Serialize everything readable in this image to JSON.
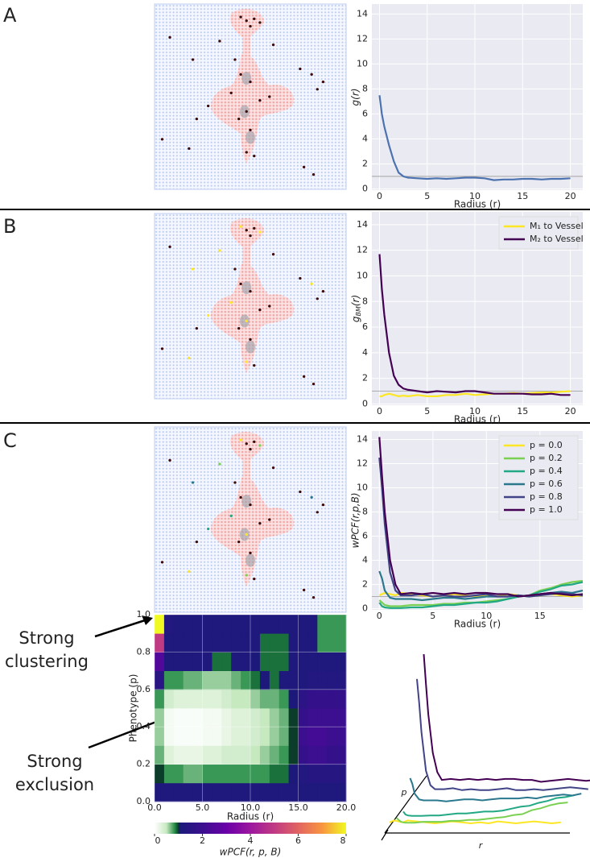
{
  "panel_labels": [
    "A",
    "B",
    "C"
  ],
  "chart_data": [
    {
      "type": "line",
      "xlabel": "Radius (r)",
      "ylabel": "g(r)",
      "color": "#4c72b0",
      "x": [
        0,
        0.25,
        0.5,
        1,
        1.5,
        2,
        2.5,
        3,
        4,
        5,
        6,
        7,
        8,
        9,
        10,
        11,
        12,
        13,
        14,
        15,
        16,
        17,
        18,
        19,
        20
      ],
      "values": [
        7.5,
        6,
        5,
        3.5,
        2.2,
        1.3,
        1.0,
        0.9,
        0.85,
        0.8,
        0.85,
        0.8,
        0.85,
        0.9,
        0.9,
        0.85,
        0.7,
        0.75,
        0.75,
        0.8,
        0.8,
        0.75,
        0.8,
        0.8,
        0.85
      ],
      "xlim": [
        -0.8,
        21.3
      ],
      "ylim": [
        -0.1,
        14.8
      ],
      "xticks": [
        0,
        5,
        10,
        15,
        20
      ],
      "yticks": [
        0,
        2,
        4,
        6,
        8,
        10,
        12,
        14
      ],
      "grid": true,
      "reference_line": 1
    },
    {
      "type": "line",
      "xlabel": "Radius (r)",
      "ylabel_parts": [
        "g",
        "BM",
        "(r)"
      ],
      "legend": "upper right",
      "x": [
        0,
        0.25,
        0.5,
        1,
        1.5,
        2,
        2.5,
        3,
        4,
        5,
        6,
        7,
        8,
        9,
        10,
        11,
        12,
        13,
        14,
        15,
        16,
        17,
        18,
        19,
        20
      ],
      "series": [
        {
          "name": "M₁ to Vessel",
          "color": "#fde725",
          "values": [
            0.6,
            0.6,
            0.7,
            0.8,
            0.7,
            0.6,
            0.65,
            0.6,
            0.7,
            0.6,
            0.6,
            0.7,
            0.7,
            0.8,
            0.7,
            0.75,
            0.8,
            0.8,
            0.85,
            0.8,
            0.85,
            0.9,
            0.9,
            0.95,
            1.0
          ]
        },
        {
          "name": "M₂ to Vessel",
          "color": "#440154",
          "values": [
            11.7,
            9,
            7,
            4,
            2.2,
            1.5,
            1.2,
            1.1,
            1.0,
            0.9,
            1.0,
            0.95,
            0.9,
            1.0,
            1.0,
            0.9,
            0.8,
            0.8,
            0.8,
            0.8,
            0.75,
            0.75,
            0.8,
            0.7,
            0.7
          ]
        }
      ],
      "xlim": [
        -0.8,
        21.3
      ],
      "ylim": [
        -0.1,
        15.0
      ],
      "xticks": [
        0,
        5,
        10,
        15,
        20
      ],
      "yticks": [
        0,
        2,
        4,
        6,
        8,
        10,
        12,
        14
      ],
      "grid": true,
      "reference_line": 1
    },
    {
      "type": "line",
      "xlabel": "Radius (r)",
      "ylabel": "wPCF(r,p,B)",
      "legend": "upper right",
      "x": [
        0,
        0.25,
        0.5,
        1,
        1.5,
        2,
        3,
        4,
        5,
        6,
        7,
        8,
        9,
        10,
        11,
        12,
        13,
        14,
        15,
        16,
        17,
        18,
        19
      ],
      "series": [
        {
          "name": "p = 0.0",
          "color": "#fde725",
          "values": [
            1.1,
            1.2,
            1.3,
            1.2,
            1.1,
            1.3,
            1.2,
            1.1,
            1.0,
            1.1,
            1.2,
            1.1,
            1.0,
            1.1,
            1.0,
            1.2,
            1.1,
            1.0,
            1.1,
            1.2,
            1.1,
            1.0,
            1.1
          ]
        },
        {
          "name": "p = 0.2",
          "color": "#7ad151",
          "values": [
            0.7,
            0.5,
            0.3,
            0.2,
            0.2,
            0.2,
            0.3,
            0.3,
            0.3,
            0.4,
            0.4,
            0.5,
            0.5,
            0.6,
            0.7,
            0.8,
            1.0,
            1.1,
            1.5,
            1.7,
            2.0,
            2.2,
            2.3
          ]
        },
        {
          "name": "p = 0.4",
          "color": "#22a884",
          "values": [
            0.5,
            0.2,
            0.1,
            0.05,
            0.05,
            0.05,
            0.1,
            0.1,
            0.2,
            0.3,
            0.3,
            0.4,
            0.5,
            0.5,
            0.6,
            0.8,
            1.0,
            1.1,
            1.4,
            1.6,
            1.9,
            2.0,
            2.2
          ]
        },
        {
          "name": "p = 0.6",
          "color": "#2a788e",
          "values": [
            3.1,
            2.5,
            1.5,
            0.9,
            0.8,
            0.8,
            0.8,
            0.7,
            0.8,
            0.9,
            0.9,
            0.8,
            0.9,
            1.0,
            1.0,
            1.0,
            1.1,
            1.0,
            1.2,
            1.3,
            1.4,
            1.3,
            1.5
          ]
        },
        {
          "name": "p = 0.8",
          "color": "#414487",
          "values": [
            12.5,
            10,
            7,
            3,
            1.5,
            1.1,
            1.1,
            1.2,
            1.0,
            1.1,
            1.0,
            1.0,
            1.1,
            1.2,
            1.0,
            1.0,
            1.1,
            1.0,
            1.1,
            1.2,
            1.3,
            1.2,
            1.1
          ]
        },
        {
          "name": "p = 1.0",
          "color": "#440154",
          "values": [
            14.2,
            11,
            8,
            4,
            2,
            1.2,
            1.3,
            1.2,
            1.3,
            1.2,
            1.3,
            1.2,
            1.3,
            1.3,
            1.2,
            1.2,
            1.0,
            1.1,
            1.2,
            1.3,
            1.2,
            1.1,
            1.2
          ]
        }
      ],
      "xlim": [
        -0.7,
        19.0
      ],
      "ylim": [
        -0.1,
        14.7
      ],
      "xticks": [
        0,
        5,
        10,
        15
      ],
      "yticks": [
        0,
        2,
        4,
        6,
        8,
        10,
        12,
        14
      ],
      "grid": true,
      "reference_line": 1
    },
    {
      "type": "heatmap",
      "xlabel": "Radius (r)",
      "ylabel": "Phenotype (p)",
      "x_bins": [
        0,
        1,
        2,
        3,
        4,
        5,
        6,
        7,
        8,
        9,
        10,
        11,
        12,
        13,
        14,
        15,
        16,
        17,
        18,
        19,
        20
      ],
      "y_bins": [
        0,
        0.1,
        0.2,
        0.3,
        0.4,
        0.5,
        0.6,
        0.7,
        0.8,
        0.9,
        1.0
      ],
      "values": [
        [
          1.2,
          1.2,
          1.2,
          1.2,
          1.2,
          1.2,
          1.2,
          1.2,
          1.2,
          1.2,
          1.2,
          1.2,
          1.2,
          1.2,
          1.2,
          1.2,
          1.2,
          1.2,
          1.2,
          1.2
        ],
        [
          1,
          0.8,
          0.8,
          0.7,
          0.7,
          0.8,
          0.8,
          0.8,
          0.8,
          0.8,
          0.8,
          0.8,
          0.9,
          0.9,
          1.1,
          1.3,
          1.4,
          1.4,
          1.4,
          1.4
        ],
        [
          0.7,
          0.3,
          0.2,
          0.2,
          0.2,
          0.3,
          0.3,
          0.4,
          0.4,
          0.4,
          0.5,
          0.6,
          0.7,
          0.8,
          1.0,
          1.8,
          2,
          2,
          1.8,
          1.8
        ],
        [
          0.6,
          0.1,
          0.05,
          0.05,
          0.05,
          0.1,
          0.1,
          0.2,
          0.3,
          0.3,
          0.4,
          0.5,
          0.6,
          0.7,
          1.0,
          2,
          2.2,
          2.2,
          2,
          2
        ],
        [
          0.6,
          0.1,
          0.05,
          0.05,
          0.05,
          0.1,
          0.1,
          0.2,
          0.3,
          0.3,
          0.4,
          0.5,
          0.6,
          0.7,
          1.0,
          1.8,
          2,
          2,
          2,
          2
        ],
        [
          0.8,
          0.4,
          0.3,
          0.3,
          0.3,
          0.3,
          0.3,
          0.4,
          0.5,
          0.5,
          0.6,
          0.7,
          0.7,
          0.8,
          1.1,
          1.6,
          1.8,
          1.8,
          1.8,
          1.8
        ],
        [
          1.5,
          0.8,
          0.8,
          0.7,
          0.7,
          0.6,
          0.6,
          0.6,
          0.7,
          0.8,
          0.9,
          1.1,
          0.9,
          1.2,
          1.2,
          1.2,
          1.3,
          1.3,
          1.3,
          1.3
        ],
        [
          2.5,
          1.2,
          1.2,
          1.2,
          1.2,
          1.2,
          0.9,
          0.9,
          1.2,
          1.2,
          1.1,
          0.9,
          0.9,
          0.9,
          1.2,
          1.2,
          1.2,
          1.2,
          1.2,
          1.2
        ],
        [
          5,
          1.2,
          1.2,
          1.2,
          1.2,
          1.2,
          1.2,
          1.2,
          1.2,
          1.2,
          1.2,
          0.9,
          0.9,
          0.9,
          1.2,
          1.2,
          1.2,
          0.8,
          0.8,
          0.8
        ],
        [
          8,
          1.3,
          1.2,
          1.2,
          1.2,
          1.2,
          1.2,
          1.2,
          1.2,
          1.2,
          1.2,
          1.2,
          1.2,
          1.2,
          1.2,
          1.2,
          1.2,
          0.8,
          0.8,
          0.8
        ]
      ],
      "xlim": [
        0,
        20
      ],
      "ylim": [
        0,
        1
      ],
      "xticks": [
        {
          "value": 0,
          "label": "0.0"
        },
        {
          "value": 5,
          "label": "5.0"
        },
        {
          "value": 10,
          "label": "10.0"
        },
        {
          "value": 15,
          "label": "15.0"
        },
        {
          "value": 20,
          "label": "20.0"
        }
      ],
      "yticks": [
        {
          "value": 0,
          "label": "0.0"
        },
        0.2,
        0.4,
        0.6,
        0.8,
        {
          "value": 1,
          "label": "1.0"
        }
      ],
      "grid": true,
      "colorbar": {
        "label": "wPCF(r, p, B)",
        "lim": [
          0,
          8
        ],
        "ticks": [
          0,
          2,
          4,
          6,
          8
        ]
      },
      "annotations": [
        {
          "lines": [
            "Strong",
            "clustering"
          ]
        },
        {
          "lines": [
            "Strong",
            "exclusion"
          ]
        }
      ]
    },
    {
      "type": "line3d",
      "xlabel": "r",
      "zlabel": "p"
    }
  ]
}
